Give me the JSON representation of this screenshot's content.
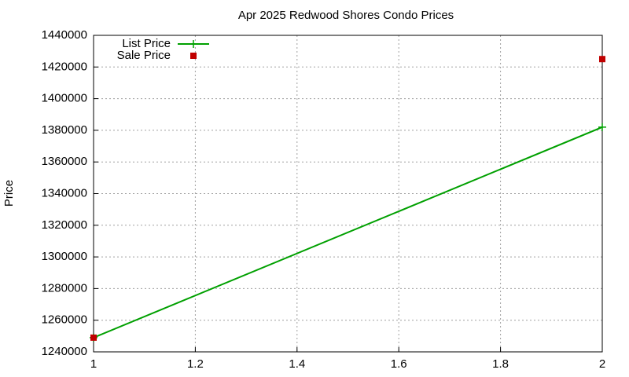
{
  "chart_data": {
    "type": "line",
    "title": "Apr 2025 Redwood Shores Condo Prices",
    "y_label": "Price",
    "series": [
      {
        "name": "List Price",
        "color": "#00a000",
        "style": "linespoints",
        "x": [
          1,
          2
        ],
        "values": [
          1249000,
          1382000
        ]
      },
      {
        "name": "Sale Price",
        "color": "#c00000",
        "style": "points",
        "x": [
          1,
          2
        ],
        "values": [
          1249000,
          1425000
        ]
      }
    ],
    "xlim": [
      1,
      2
    ],
    "xticks": [
      1,
      1.2,
      1.4,
      1.6,
      1.8,
      2
    ],
    "ylim": [
      1240000,
      1440000
    ],
    "yticks": [
      1240000,
      1260000,
      1280000,
      1300000,
      1320000,
      1340000,
      1360000,
      1380000,
      1400000,
      1420000,
      1440000
    ],
    "grid": true,
    "legend": "top-left"
  }
}
